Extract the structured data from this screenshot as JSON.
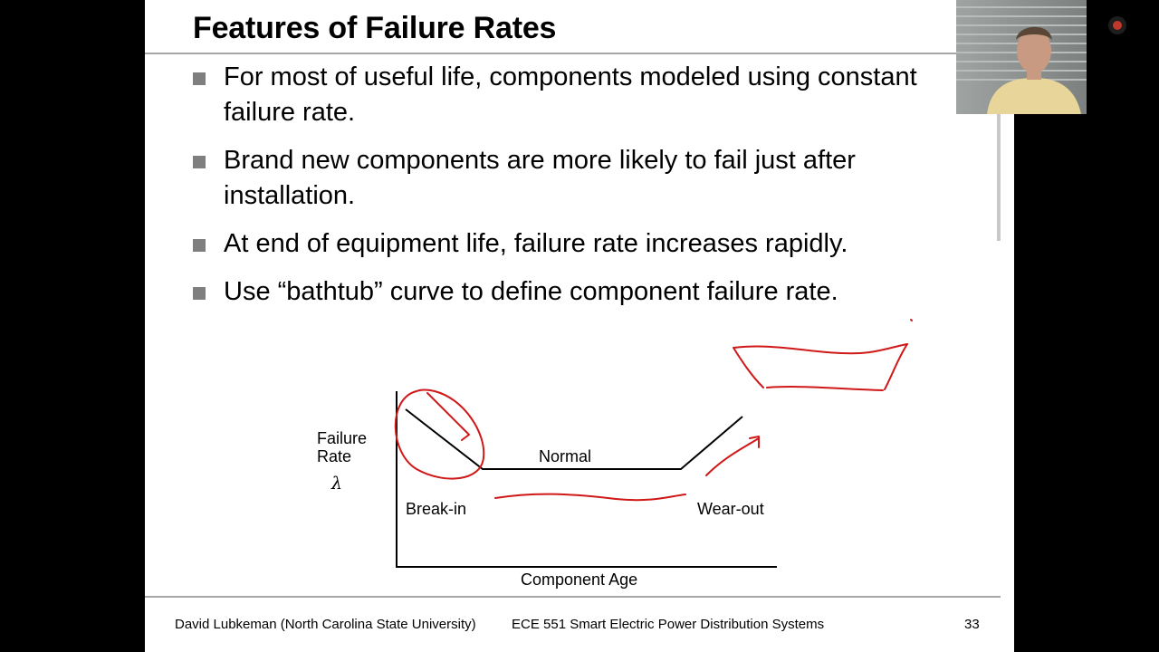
{
  "slide": {
    "title": "Features of Failure Rates",
    "bullets": [
      {
        "text": "For most of useful life, components modeled using constant failure rate."
      },
      {
        "text": "Brand new components are more likely to fail just after installation."
      },
      {
        "text": "At end of equipment life, failure rate increases rapidly."
      },
      {
        "text": "Use “bathtub” curve to define component failure rate."
      }
    ],
    "diagram": {
      "y_label_line1": "Failure",
      "y_label_line2": "Rate",
      "y_symbol": "λ",
      "x_label": "Component Age",
      "phase_break_in": "Break-in",
      "phase_normal": "Normal",
      "phase_wear_out": "Wear-out"
    },
    "footer": {
      "author": "David Lubkeman (North Carolina State University)",
      "course": "ECE 551 Smart Electric Power Distribution Systems",
      "page_number": "33"
    }
  },
  "colors": {
    "annotation_ink": "#d01818",
    "rule_gray": "#a6a6a6",
    "bullet_gray": "#7f7f7f"
  },
  "icons": {
    "bullet": "square-bullet-icon",
    "recording": "record-indicator-icon"
  }
}
